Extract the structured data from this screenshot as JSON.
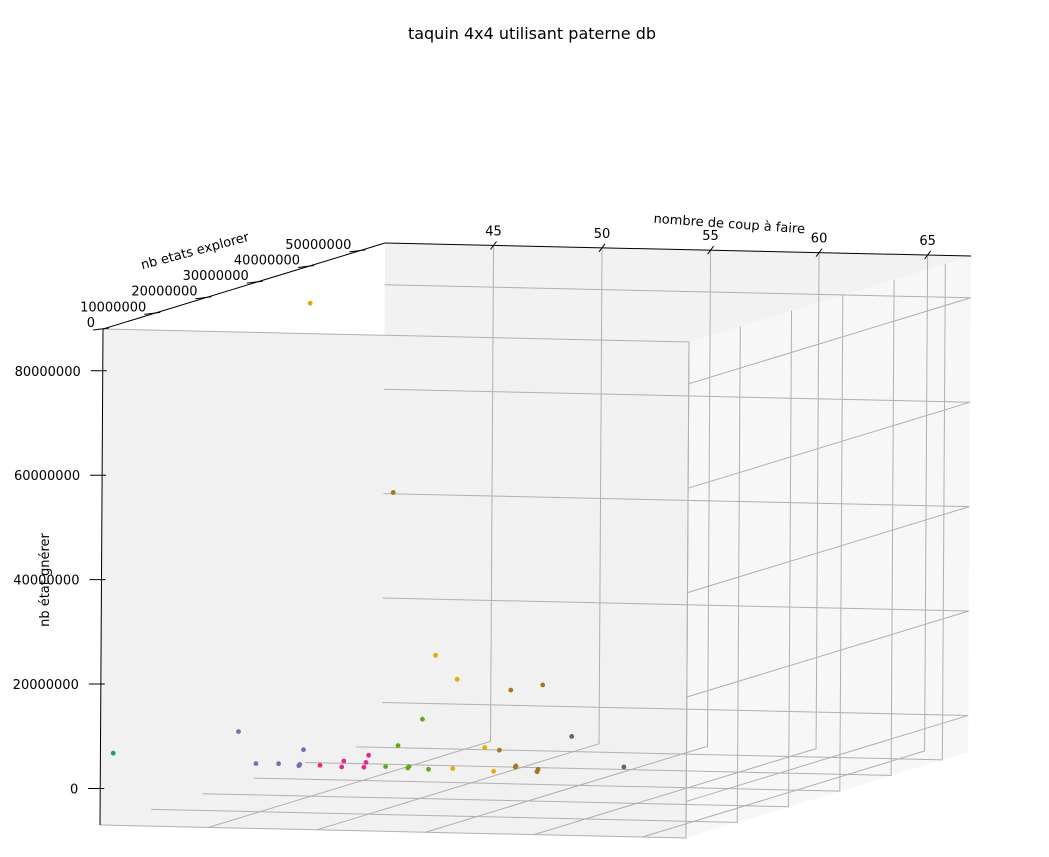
{
  "chart_data": {
    "type": "scatter",
    "projection": "3d",
    "title": "taquin 4x4 utilisant paterne db",
    "xlabel": "nombre de coup à faire",
    "ylabel": "nb etats explorer",
    "zlabel": "nb état gnérer",
    "x_ticks": [
      "45",
      "50",
      "55",
      "60",
      "65"
    ],
    "y_ticks": [
      "0",
      "10000000",
      "20000000",
      "30000000",
      "40000000",
      "50000000"
    ],
    "z_ticks": [
      "0",
      "20000000",
      "40000000",
      "60000000",
      "80000000"
    ],
    "xlim": [
      40,
      67
    ],
    "ylim": [
      0,
      55000000
    ],
    "zlim": [
      -7000000,
      88000000
    ],
    "grid": true,
    "pane_color": "#f2f2f2",
    "points": [
      {
        "x": 40,
        "y": 2500000,
        "z": 6000000,
        "color": "#1b9e77"
      },
      {
        "x": 46,
        "y": 1500000,
        "z": 11000000,
        "color": "#7570b3"
      },
      {
        "x": 47,
        "y": 700000,
        "z": 5200000,
        "color": "#7570b3"
      },
      {
        "x": 48,
        "y": 900000,
        "z": 5200000,
        "color": "#7570b3"
      },
      {
        "x": 49,
        "y": 1500000,
        "z": 7800000,
        "color": "#7570b3"
      },
      {
        "x": 49,
        "y": 800000,
        "z": 5200000,
        "color": "#7570b3"
      },
      {
        "x": 49,
        "y": 600000,
        "z": 5000000,
        "color": "#7570b3"
      },
      {
        "x": 50,
        "y": 500000,
        "z": 5200000,
        "color": "#e7298a"
      },
      {
        "x": 51,
        "y": 900000,
        "z": 6000000,
        "color": "#e7298a"
      },
      {
        "x": 51,
        "y": 500000,
        "z": 5000000,
        "color": "#e7298a"
      },
      {
        "x": 52,
        "y": 1500000,
        "z": 7000000,
        "color": "#e7298a"
      },
      {
        "x": 52,
        "y": 1000000,
        "z": 5800000,
        "color": "#e7298a"
      },
      {
        "x": 52,
        "y": 600000,
        "z": 5000000,
        "color": "#e7298a"
      },
      {
        "x": 46,
        "y": 15000000,
        "z": 89000000,
        "color": "#e6ab02"
      },
      {
        "x": 52,
        "y": 6000000,
        "z": 56000000,
        "color": "#a6761d"
      },
      {
        "x": 53,
        "y": 3000000,
        "z": 8500000,
        "color": "#66a61e"
      },
      {
        "x": 53,
        "y": 600000,
        "z": 5200000,
        "color": "#66a61e"
      },
      {
        "x": 54,
        "y": 3500000,
        "z": 13500000,
        "color": "#66a61e"
      },
      {
        "x": 54,
        "y": 900000,
        "z": 5200000,
        "color": "#66a61e"
      },
      {
        "x": 54,
        "y": 700000,
        "z": 5000000,
        "color": "#66a61e"
      },
      {
        "x": 55,
        "y": 500000,
        "z": 4900000,
        "color": "#66a61e"
      },
      {
        "x": 54,
        "y": 6000000,
        "z": 25000000,
        "color": "#e6ab02"
      },
      {
        "x": 55,
        "y": 6000000,
        "z": 20500000,
        "color": "#e6ab02"
      },
      {
        "x": 56,
        "y": 1000000,
        "z": 5000000,
        "color": "#e6ab02"
      },
      {
        "x": 57,
        "y": 3000000,
        "z": 8500000,
        "color": "#e6ab02"
      },
      {
        "x": 58,
        "y": 500000,
        "z": 4800000,
        "color": "#e6ab02"
      },
      {
        "x": 57,
        "y": 8000000,
        "z": 18000000,
        "color": "#a6761d"
      },
      {
        "x": 58,
        "y": 10000000,
        "z": 18500000,
        "color": "#a6761d"
      },
      {
        "x": 58,
        "y": 1600000,
        "z": 8500000,
        "color": "#a6761d"
      },
      {
        "x": 59,
        "y": 600000,
        "z": 5900000,
        "color": "#a6761d"
      },
      {
        "x": 59,
        "y": 500000,
        "z": 5700000,
        "color": "#a6761d"
      },
      {
        "x": 60,
        "y": 700000,
        "z": 5300000,
        "color": "#a6761d"
      },
      {
        "x": 60,
        "y": 500000,
        "z": 4900000,
        "color": "#a6761d"
      },
      {
        "x": 61,
        "y": 3000000,
        "z": 11000000,
        "color": "#666666"
      },
      {
        "x": 64,
        "y": 500000,
        "z": 6200000,
        "color": "#666666"
      }
    ]
  }
}
